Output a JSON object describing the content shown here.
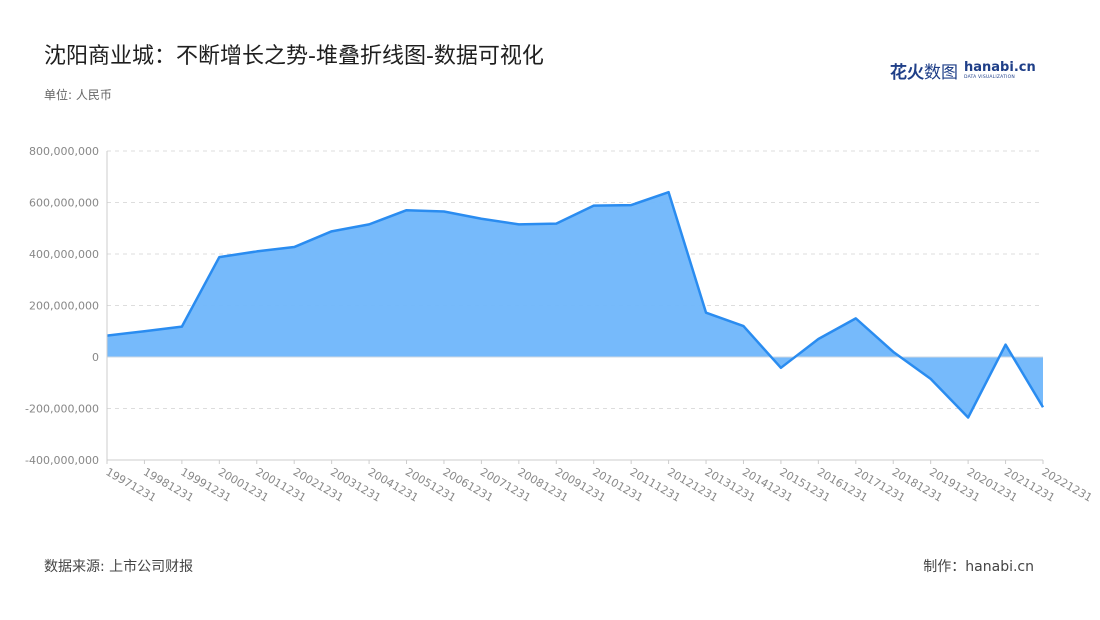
{
  "header": {
    "title": "沈阳商业城：不断增长之势-堆叠折线图-数据可视化",
    "unit": "单位: 人民币"
  },
  "brand": {
    "cn_bold": "花火",
    "cn_light": "数图",
    "en_main": "hanabi.cn",
    "en_sub": "DATA VISUALIZATION"
  },
  "footer": {
    "source": "数据来源: 上市公司财报",
    "credit": "制作：hanabi.cn"
  },
  "colors": {
    "line": "#2a8cf0",
    "fill": "#6fb6fb",
    "grid": "#dddddd",
    "axis_text": "#888888"
  },
  "chart_data": {
    "type": "area",
    "x": [
      "19971231",
      "19981231",
      "19991231",
      "20001231",
      "20011231",
      "20021231",
      "20031231",
      "20041231",
      "20051231",
      "20061231",
      "20071231",
      "20081231",
      "20091231",
      "20101231",
      "20111231",
      "20121231",
      "20131231",
      "20141231",
      "20151231",
      "20161231",
      "20171231",
      "20181231",
      "20191231",
      "20201231",
      "20211231",
      "20221231"
    ],
    "series": [
      {
        "values": [
          83000000,
          100000000,
          118000000,
          388000000,
          410000000,
          427000000,
          488000000,
          515000000,
          570000000,
          565000000,
          537000000,
          515000000,
          518000000,
          588000000,
          590000000,
          640000000,
          172000000,
          120000000,
          -42000000,
          70000000,
          150000000,
          20000000,
          -85000000,
          -235000000,
          48000000,
          -195000000
        ]
      }
    ],
    "yticks": [
      "800,000,000",
      "600,000,000",
      "400,000,000",
      "200,000,000",
      "0",
      "-200,000,000",
      "-400,000,000"
    ],
    "ytick_values": [
      800000000,
      600000000,
      400000000,
      200000000,
      0,
      -200000000,
      -400000000
    ],
    "ylim": [
      -400000000,
      800000000
    ],
    "grid": true,
    "legend": "none"
  }
}
